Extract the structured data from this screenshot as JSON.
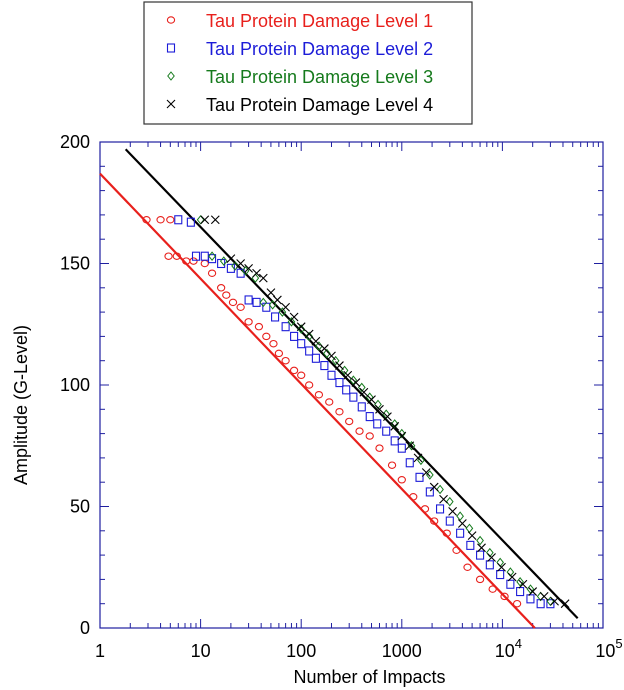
{
  "chart_data": {
    "type": "scatter",
    "title": "",
    "xlabel": "Number of Impacts",
    "ylabel": "Amplitude (G-Level)",
    "xscale": "log",
    "xlim": [
      1,
      100000
    ],
    "ylim": [
      0,
      200
    ],
    "x_ticks": [
      {
        "value": 1,
        "label": "1"
      },
      {
        "value": 10,
        "label": "10"
      },
      {
        "value": 100,
        "label": "100"
      },
      {
        "value": 1000,
        "label": "1000"
      },
      {
        "value": 10000,
        "label": "10",
        "exponent": "4"
      },
      {
        "value": 100000,
        "label": "10",
        "exponent": "5"
      }
    ],
    "y_ticks": [
      0,
      50,
      100,
      150,
      200
    ],
    "y_tick_labels": [
      "0",
      "50",
      "100",
      "150",
      "200"
    ],
    "grid": false,
    "legend_position": "top-center",
    "series": [
      {
        "name": "Tau Protein Damage Level 1",
        "color": "#e8201c",
        "marker": "circle",
        "points": [
          [
            2.9,
            168
          ],
          [
            4,
            168
          ],
          [
            4.8,
            153
          ],
          [
            5.8,
            153
          ],
          [
            5,
            168
          ],
          [
            7.2,
            151
          ],
          [
            8.5,
            151
          ],
          [
            11,
            150
          ],
          [
            13,
            146
          ],
          [
            16,
            140
          ],
          [
            18,
            137
          ],
          [
            21,
            134
          ],
          [
            25,
            132
          ],
          [
            30,
            126
          ],
          [
            38,
            124
          ],
          [
            45,
            120
          ],
          [
            53,
            117
          ],
          [
            60,
            113
          ],
          [
            70,
            110
          ],
          [
            85,
            106
          ],
          [
            100,
            104
          ],
          [
            120,
            100
          ],
          [
            150,
            96
          ],
          [
            190,
            93
          ],
          [
            240,
            89
          ],
          [
            300,
            85
          ],
          [
            380,
            81
          ],
          [
            480,
            79
          ],
          [
            600,
            74
          ],
          [
            800,
            67
          ],
          [
            1000,
            61
          ],
          [
            1300,
            54
          ],
          [
            1700,
            49
          ],
          [
            2100,
            44
          ],
          [
            2800,
            39
          ],
          [
            3500,
            32
          ],
          [
            4500,
            25
          ],
          [
            6000,
            20
          ],
          [
            8000,
            16
          ],
          [
            10500,
            13
          ],
          [
            14000,
            10
          ]
        ]
      },
      {
        "name": "Tau Protein Damage Level 2",
        "color": "#1c1cd8",
        "marker": "square",
        "points": [
          [
            6,
            168
          ],
          [
            8,
            167
          ],
          [
            9,
            153
          ],
          [
            11,
            153
          ],
          [
            13,
            152
          ],
          [
            16,
            150
          ],
          [
            20,
            148
          ],
          [
            25,
            146
          ],
          [
            30,
            135
          ],
          [
            36,
            134
          ],
          [
            45,
            132
          ],
          [
            55,
            128
          ],
          [
            70,
            124
          ],
          [
            85,
            120
          ],
          [
            100,
            117
          ],
          [
            120,
            114
          ],
          [
            140,
            111
          ],
          [
            170,
            108
          ],
          [
            200,
            104
          ],
          [
            240,
            101
          ],
          [
            280,
            98
          ],
          [
            330,
            95
          ],
          [
            400,
            91
          ],
          [
            480,
            87
          ],
          [
            570,
            84
          ],
          [
            700,
            81
          ],
          [
            850,
            77
          ],
          [
            1000,
            74
          ],
          [
            1200,
            68
          ],
          [
            1500,
            62
          ],
          [
            1900,
            56
          ],
          [
            2400,
            49
          ],
          [
            3000,
            44
          ],
          [
            3800,
            39
          ],
          [
            4800,
            34
          ],
          [
            6000,
            30
          ],
          [
            7500,
            26
          ],
          [
            9500,
            22
          ],
          [
            12000,
            18
          ],
          [
            15000,
            15
          ],
          [
            19000,
            12
          ],
          [
            24000,
            10
          ],
          [
            30000,
            10
          ]
        ]
      },
      {
        "name": "Tau Protein Damage Level 3",
        "color": "#157a1c",
        "marker": "diamond",
        "points": [
          [
            10,
            168
          ],
          [
            13,
            153
          ],
          [
            17,
            151
          ],
          [
            22,
            149
          ],
          [
            28,
            147
          ],
          [
            35,
            144
          ],
          [
            42,
            134
          ],
          [
            52,
            133
          ],
          [
            65,
            130
          ],
          [
            80,
            126
          ],
          [
            100,
            123
          ],
          [
            120,
            120
          ],
          [
            150,
            116
          ],
          [
            180,
            113
          ],
          [
            220,
            110
          ],
          [
            270,
            106
          ],
          [
            330,
            102
          ],
          [
            400,
            99
          ],
          [
            480,
            95
          ],
          [
            580,
            92
          ],
          [
            700,
            88
          ],
          [
            850,
            84
          ],
          [
            1000,
            80
          ],
          [
            1250,
            75
          ],
          [
            1550,
            69
          ],
          [
            1900,
            63
          ],
          [
            2400,
            57
          ],
          [
            3000,
            52
          ],
          [
            3800,
            46
          ],
          [
            4700,
            41
          ],
          [
            6000,
            36
          ],
          [
            7500,
            31
          ],
          [
            9500,
            27
          ],
          [
            12000,
            23
          ],
          [
            15000,
            19
          ],
          [
            19000,
            16
          ],
          [
            24000,
            13
          ],
          [
            30000,
            11
          ]
        ]
      },
      {
        "name": "Tau Protein Damage Level 4",
        "color": "#000000",
        "marker": "x",
        "points": [
          [
            11,
            168
          ],
          [
            14,
            168
          ],
          [
            20,
            152
          ],
          [
            25,
            150
          ],
          [
            30,
            148
          ],
          [
            36,
            146
          ],
          [
            42,
            144
          ],
          [
            50,
            138
          ],
          [
            58,
            135
          ],
          [
            70,
            132
          ],
          [
            85,
            128
          ],
          [
            100,
            124
          ],
          [
            120,
            121
          ],
          [
            140,
            118
          ],
          [
            170,
            115
          ],
          [
            200,
            112
          ],
          [
            240,
            108
          ],
          [
            290,
            104
          ],
          [
            350,
            101
          ],
          [
            420,
            97
          ],
          [
            500,
            94
          ],
          [
            600,
            90
          ],
          [
            720,
            87
          ],
          [
            850,
            83
          ],
          [
            1000,
            79
          ],
          [
            1200,
            75
          ],
          [
            1450,
            70
          ],
          [
            1750,
            64
          ],
          [
            2100,
            58
          ],
          [
            2600,
            53
          ],
          [
            3200,
            48
          ],
          [
            4000,
            43
          ],
          [
            5000,
            38
          ],
          [
            6200,
            33
          ],
          [
            7800,
            29
          ],
          [
            9800,
            25
          ],
          [
            12500,
            21
          ],
          [
            16000,
            18
          ],
          [
            20000,
            15
          ],
          [
            26000,
            13
          ],
          [
            33000,
            11
          ],
          [
            42000,
            10
          ]
        ]
      }
    ],
    "fit_lines": [
      {
        "series": "Tau Protein Damage Level 1",
        "color": "#e8201c",
        "from": [
          1,
          187
        ],
        "to": [
          21000,
          0
        ]
      },
      {
        "series": "Tau Protein Damage Level 4",
        "color": "#000000",
        "from": [
          1.8,
          197
        ],
        "to": [
          56000,
          4
        ]
      }
    ]
  }
}
